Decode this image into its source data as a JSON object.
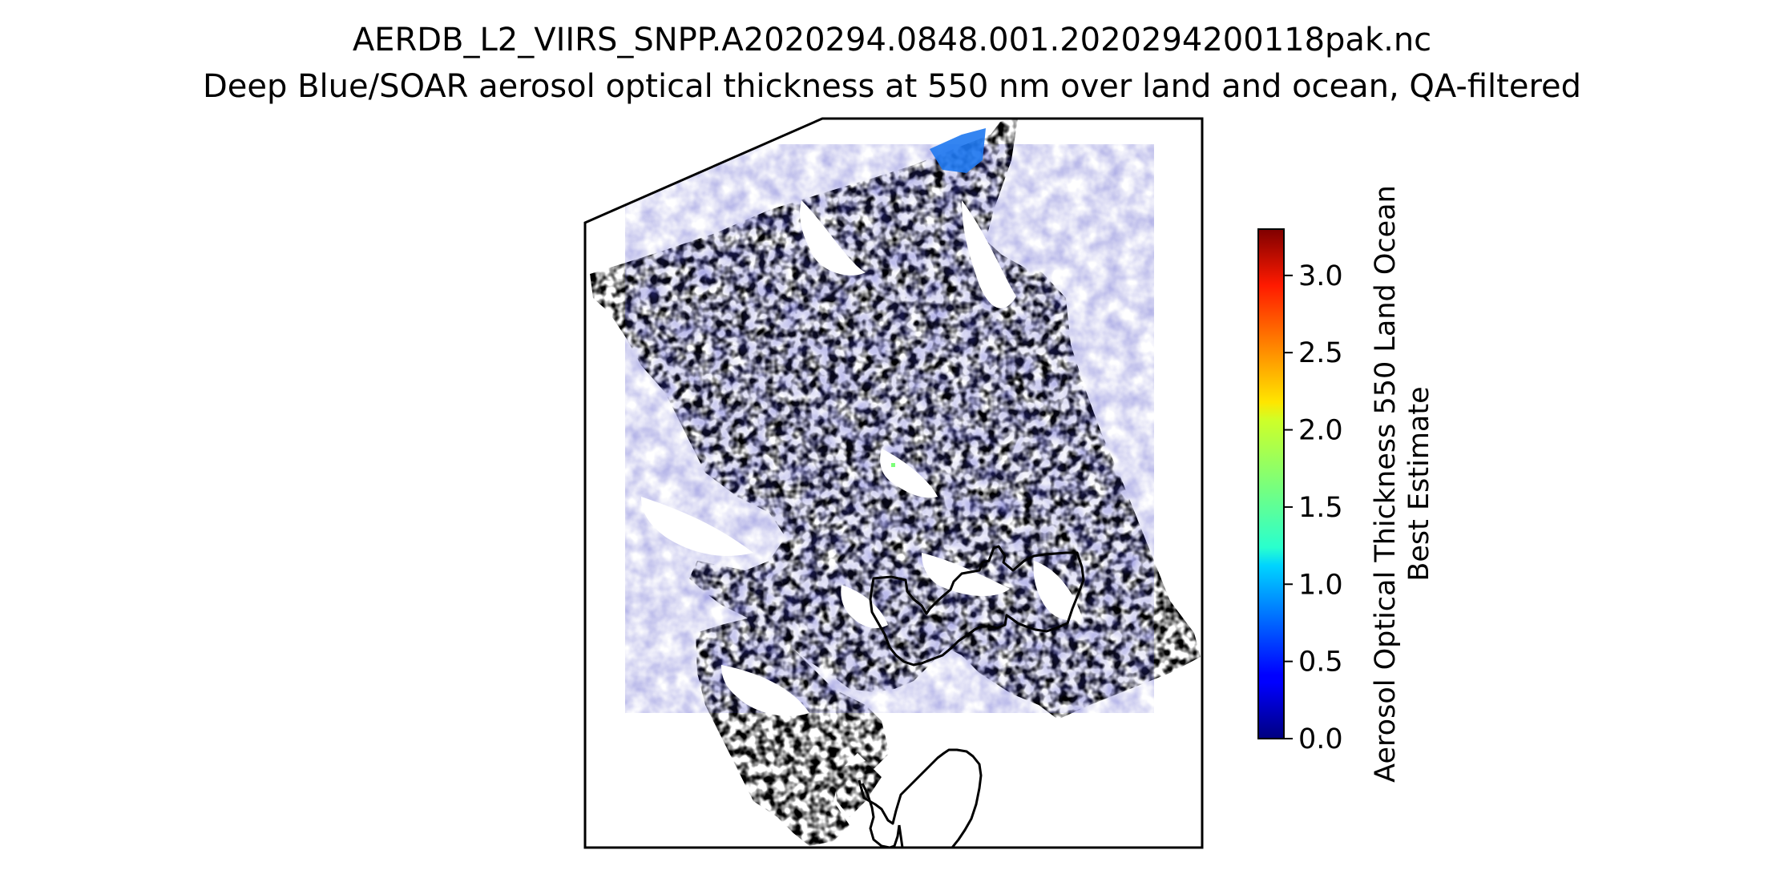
{
  "title": {
    "line1": "AERDB_L2_VIIRS_SNPP.A2020294.0848.001.2020294200118pak.nc",
    "line2": "Deep Blue/SOAR aerosol optical thickness at 550 nm over land and ocean, QA-filtered"
  },
  "colorbar": {
    "label_line1": "Aerosol Optical Thickness 550 Land Ocean",
    "label_line2": "Best Estimate",
    "min": 0.0,
    "max": 3.3,
    "colormap": "jet",
    "ticks": [
      "0.0",
      "0.5",
      "1.0",
      "1.5",
      "2.0",
      "2.5",
      "3.0"
    ]
  },
  "map": {
    "dominant_color": "#1a1ad6",
    "ocean_patch_color": "#1e78f0",
    "outlier_point_color": "#7cff79",
    "coastline_color": "#000000",
    "background_color": "#ffffff"
  }
}
